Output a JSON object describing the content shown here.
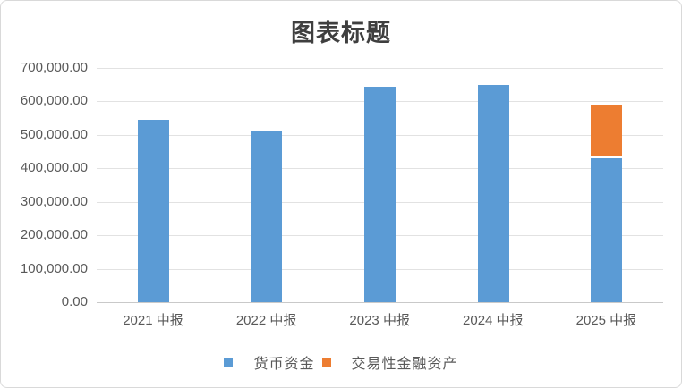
{
  "window": {
    "background_color": "#ffffff",
    "border_color": "#d9d9d9"
  },
  "chart_data": {
    "type": "bar",
    "stacked": true,
    "title": "图表标题",
    "categories": [
      "2021 中报",
      "2022 中报",
      "2023 中报",
      "2024 中报",
      "2025 中报"
    ],
    "series": [
      {
        "name": "货币资金",
        "color": "#5B9BD5",
        "values": [
          545000,
          510000,
          643000,
          648000,
          429000
        ]
      },
      {
        "name": "交易性金融资产",
        "color": "#ED7D31",
        "values": [
          0,
          0,
          0,
          0,
          162000
        ]
      }
    ],
    "ylim": [
      0,
      700000
    ],
    "ytick_interval": 100000,
    "yticks": [
      {
        "value": 700000,
        "label": "700,000.00"
      },
      {
        "value": 600000,
        "label": "600,000.00"
      },
      {
        "value": 500000,
        "label": "500,000.00"
      },
      {
        "value": 400000,
        "label": "400,000.00"
      },
      {
        "value": 300000,
        "label": "300,000.00"
      },
      {
        "value": 200000,
        "label": "200,000.00"
      },
      {
        "value": 100000,
        "label": "100,000.00"
      },
      {
        "value": 0,
        "label": "0.00"
      }
    ],
    "grid": true,
    "legend_position": "bottom",
    "gridline_color": "#e2e2e2",
    "axis_color": "#c9c9c9",
    "tick_text_color": "#595959",
    "title_color": "#3f3f3f"
  }
}
